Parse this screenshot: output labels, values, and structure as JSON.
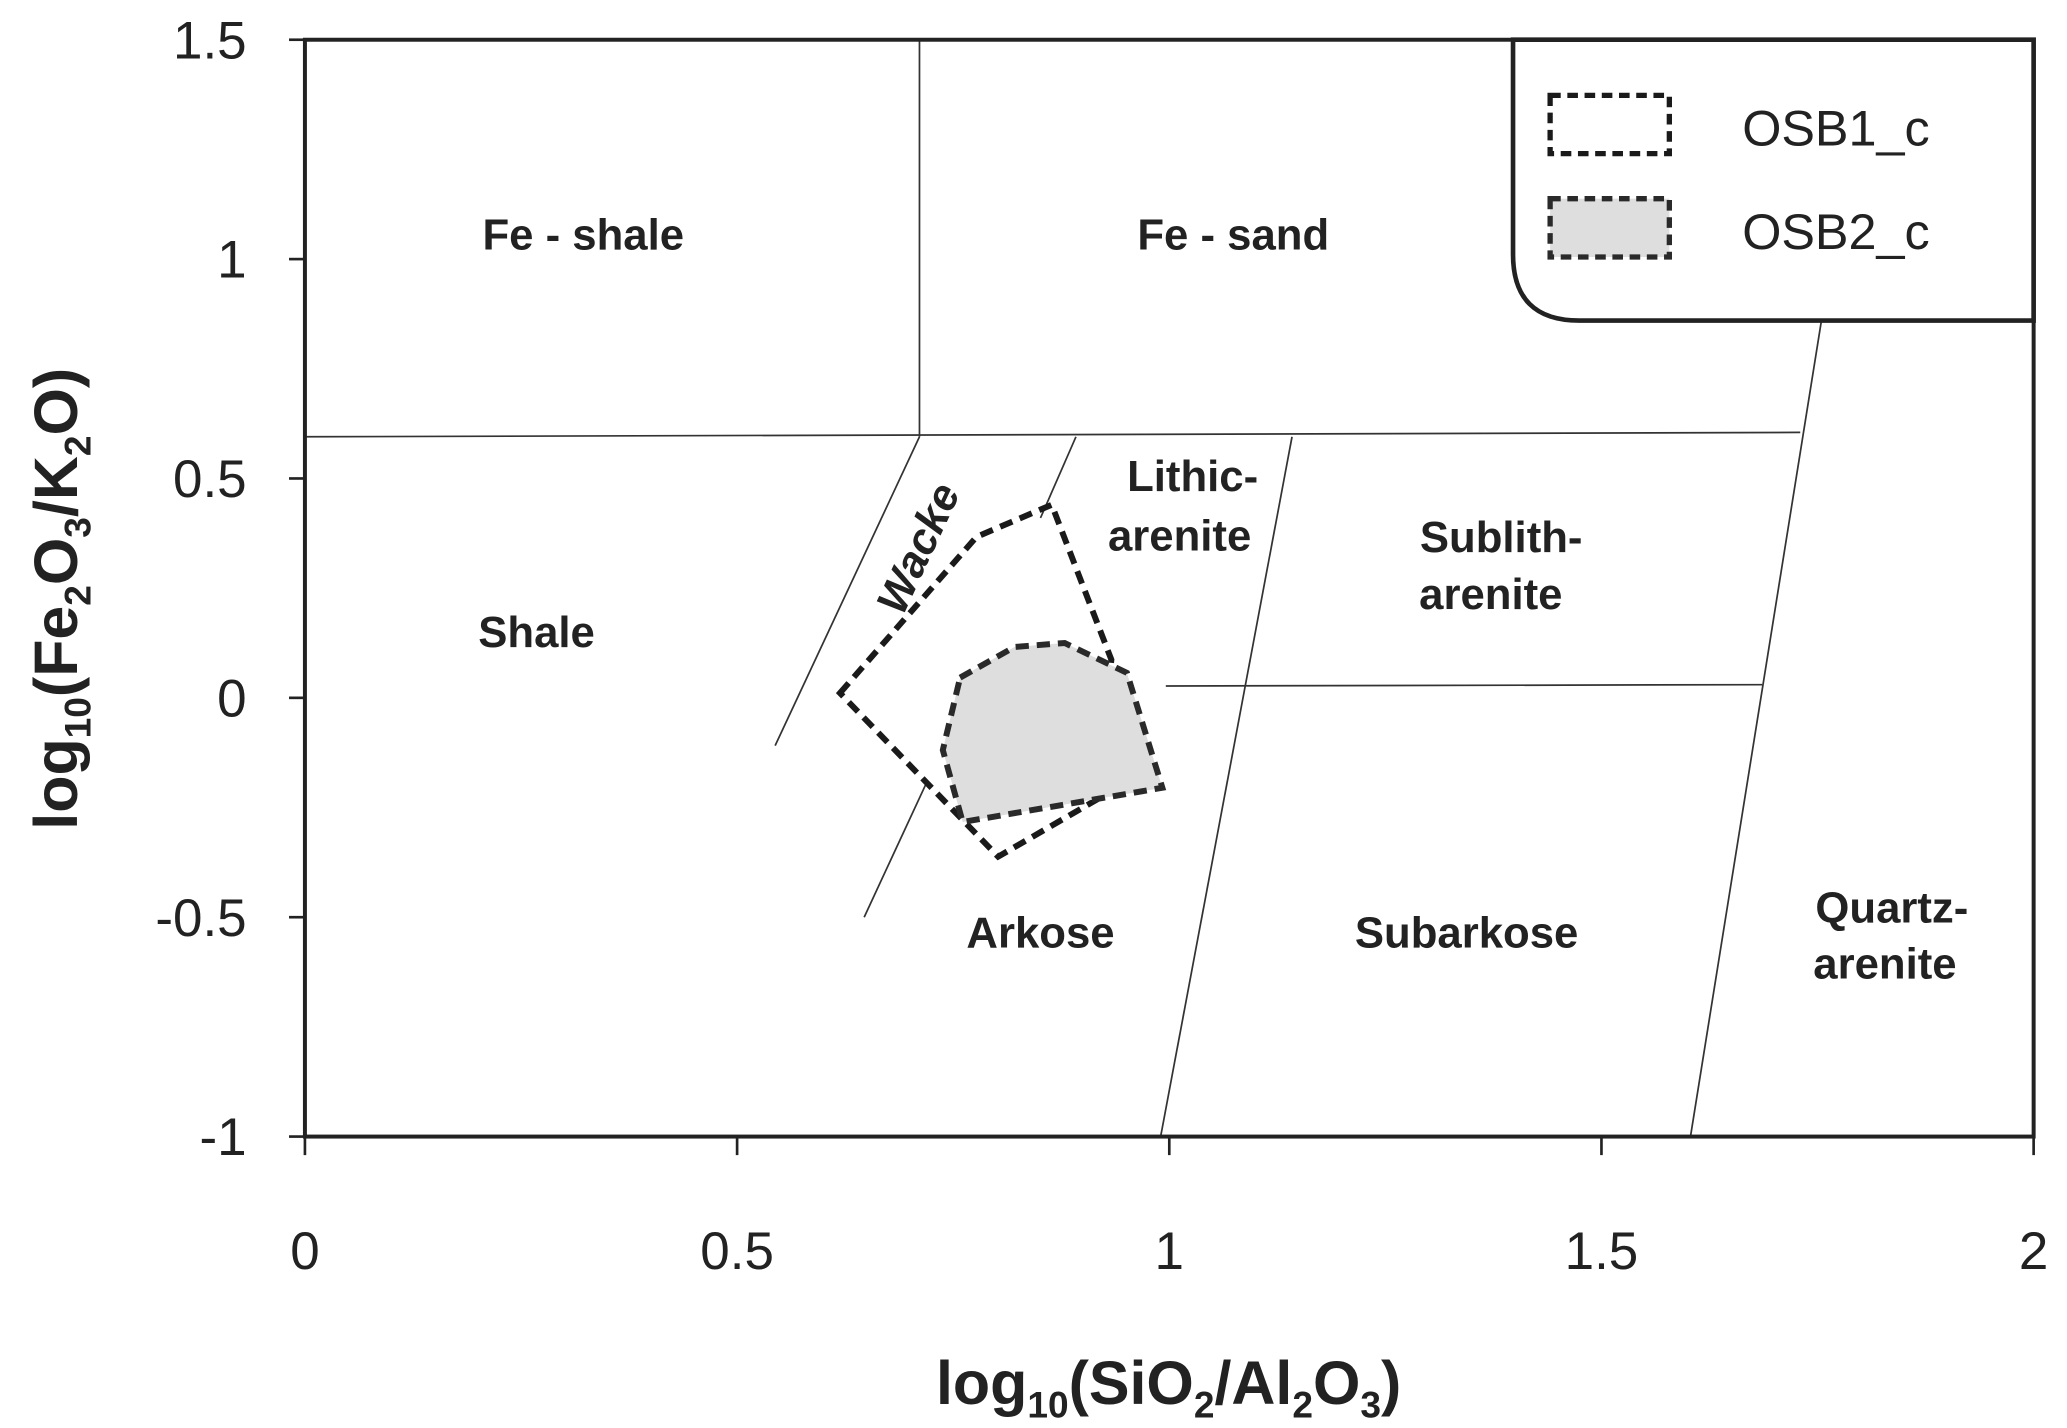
{
  "chart_data": {
    "type": "diagram",
    "xlabel": {
      "main": "log",
      "sub1": "10",
      "open": "(SiO",
      "sub2": "2",
      "mid": "/Al",
      "sub3": "2",
      "o": "O",
      "sub4": "3",
      "close": ")"
    },
    "ylabel": {
      "main": "log",
      "sub1": "10",
      "open": "(Fe",
      "sub2": "2",
      "mid": "O",
      "sub3": "3",
      "slash": "/K",
      "sub4": "2",
      "close": "O)"
    },
    "xlim": [
      0,
      2
    ],
    "ylim": [
      -1,
      1.5
    ],
    "xticks": [
      "0",
      "0.5",
      "1",
      "1.5",
      "2"
    ],
    "yticks": [
      "1.5",
      "1",
      "0.5",
      "0",
      "-0.5",
      "-1"
    ],
    "grid": false,
    "legend_position": "top-right",
    "field_boundaries": [
      [
        [
          0.711,
          1.5
        ],
        [
          0.711,
          0.595
        ]
      ],
      [
        [
          0,
          0.595
        ],
        [
          1.73,
          0.605
        ]
      ],
      [
        [
          0.711,
          0.595
        ],
        [
          0.544,
          -0.109
        ]
      ],
      [
        [
          0.892,
          0.595
        ],
        [
          0.851,
          0.41
        ]
      ],
      [
        [
          0.72,
          -0.19
        ],
        [
          0.647,
          -0.5
        ]
      ],
      [
        [
          1.142,
          0.595
        ],
        [
          0.99,
          -1.0
        ]
      ],
      [
        [
          0.996,
          0.027
        ],
        [
          1.686,
          0.03
        ]
      ],
      [
        [
          1.755,
          0.866
        ],
        [
          1.603,
          -1.0
        ]
      ]
    ],
    "regions": [
      {
        "label": "Fe - shale",
        "x": 0.322,
        "y": 1.048
      },
      {
        "label": "Fe - sand",
        "x": 1.074,
        "y": 1.048
      },
      {
        "label": "Shale",
        "x": 0.268,
        "y": 0.142
      },
      {
        "label": "Lithic-",
        "x": 1.027,
        "y": 0.498
      },
      {
        "label": "arenite",
        "x": 1.012,
        "y": 0.362
      },
      {
        "label": "Sublith-",
        "x": 1.384,
        "y": 0.359
      },
      {
        "label": "arenite",
        "x": 1.372,
        "y": 0.229
      },
      {
        "label": "Arkose",
        "x": 0.851,
        "y": -0.543
      },
      {
        "label": "Subarkose",
        "x": 1.344,
        "y": -0.543
      },
      {
        "label": "Quartz-",
        "x": 1.836,
        "y": -0.486
      },
      {
        "label": "arenite",
        "x": 1.828,
        "y": -0.613
      },
      {
        "label": "Wacke",
        "x": 0.713,
        "y": 0.338,
        "rotate": -65
      }
    ],
    "series": [
      {
        "name": "OSB1_c",
        "fill": "none",
        "stroke": "#1a1a1a",
        "polygon": [
          [
            0.619,
            0.011
          ],
          [
            0.777,
            0.367
          ],
          [
            0.864,
            0.44
          ],
          [
            0.933,
            0.087
          ],
          [
            0.916,
            -0.232
          ],
          [
            0.802,
            -0.362
          ]
        ]
      },
      {
        "name": "OSB2_c",
        "fill": "#dedede",
        "stroke": "#2a2a2a",
        "polygon": [
          [
            0.758,
            0.046
          ],
          [
            0.821,
            0.116
          ],
          [
            0.879,
            0.125
          ],
          [
            0.951,
            0.057
          ],
          [
            0.992,
            -0.205
          ],
          [
            0.761,
            -0.283
          ],
          [
            0.738,
            -0.119
          ]
        ]
      }
    ]
  }
}
